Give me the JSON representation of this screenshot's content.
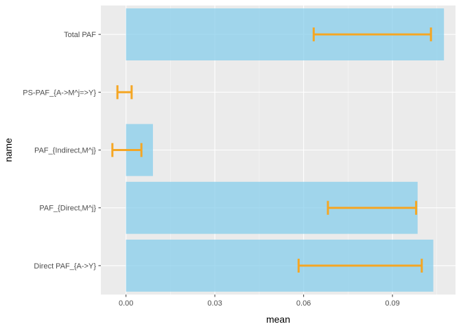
{
  "colors": {
    "panel_background": "#ebebeb",
    "grid_major": "#ffffff",
    "bar_fill": "#87ceeb",
    "bar_opacity": 0.75,
    "errorbar": "#f5a623",
    "tick_mark": "#333333"
  },
  "chart_data": {
    "type": "bar",
    "orientation": "horizontal",
    "xlabel": "mean",
    "ylabel": "name",
    "xlim": [
      -0.0085,
      0.1113
    ],
    "x_ticks": [
      0.0,
      0.03,
      0.06,
      0.09
    ],
    "x_tick_labels": [
      "0.00",
      "0.03",
      "0.06",
      "0.09"
    ],
    "grid": true,
    "legend": "none",
    "categories": [
      "Total PAF",
      "PS-PAF_{A->M^j=>Y}",
      "PAF_{Indirect,M^j}",
      "PAF_{Direct,M^j}",
      "Direct PAF_{A->Y}"
    ],
    "values": [
      0.1074,
      0.0,
      0.0091,
      0.0985,
      0.1038
    ],
    "error_lower": [
      0.0634,
      -0.0029,
      -0.0046,
      0.0682,
      0.0583
    ],
    "error_upper": [
      0.103,
      0.0019,
      0.0052,
      0.098,
      0.0999
    ]
  }
}
